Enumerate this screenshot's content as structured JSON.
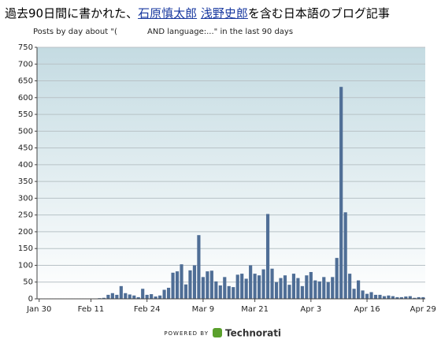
{
  "chart_data": {
    "type": "bar",
    "title": [
      "過去90日間に書かれた、",
      "石原慎太郎",
      "浅野史郎",
      "を含む日本語のブログ記事"
    ],
    "subtitle": "Posts by day about \"(            AND language:...\" in the last 90 days",
    "categories": [
      "Jan 30",
      null,
      null,
      null,
      null,
      null,
      null,
      null,
      null,
      null,
      null,
      null,
      "Feb 11",
      null,
      null,
      null,
      null,
      null,
      null,
      null,
      null,
      null,
      null,
      null,
      null,
      "Feb 24",
      null,
      null,
      null,
      null,
      null,
      null,
      null,
      null,
      null,
      null,
      null,
      null,
      "Mar 9",
      null,
      null,
      null,
      null,
      null,
      null,
      null,
      null,
      null,
      null,
      null,
      "Mar 21",
      null,
      null,
      null,
      null,
      null,
      null,
      null,
      null,
      null,
      null,
      null,
      null,
      "Apr 3",
      null,
      null,
      null,
      null,
      null,
      null,
      null,
      null,
      null,
      null,
      null,
      null,
      "Apr 16",
      null,
      null,
      null,
      null,
      null,
      null,
      null,
      null,
      null,
      null,
      null,
      null,
      "Apr 29"
    ],
    "values": [
      0,
      0,
      0,
      0,
      0,
      0,
      0,
      0,
      0,
      0,
      0,
      0,
      0,
      0,
      2,
      3,
      12,
      17,
      12,
      38,
      17,
      13,
      10,
      5,
      30,
      12,
      14,
      7,
      10,
      27,
      33,
      78,
      82,
      103,
      43,
      85,
      100,
      190,
      65,
      82,
      84,
      52,
      40,
      65,
      38,
      35,
      72,
      75,
      60,
      100,
      75,
      70,
      88,
      253,
      90,
      50,
      62,
      70,
      42,
      75,
      62,
      38,
      70,
      80,
      55,
      52,
      65,
      50,
      65,
      122,
      632,
      258,
      75,
      30,
      55,
      25,
      15,
      20,
      12,
      12,
      8,
      10,
      8,
      5,
      5,
      7,
      8,
      3,
      5,
      5
    ],
    "color": "#4f6e96",
    "ylim": [
      0,
      750
    ],
    "yticks": [
      0,
      50,
      100,
      150,
      200,
      250,
      300,
      350,
      400,
      450,
      500,
      550,
      600,
      650,
      700,
      750
    ],
    "grid": true
  },
  "footer": {
    "powered_by": "POWERED BY",
    "brand": "Technorati"
  }
}
